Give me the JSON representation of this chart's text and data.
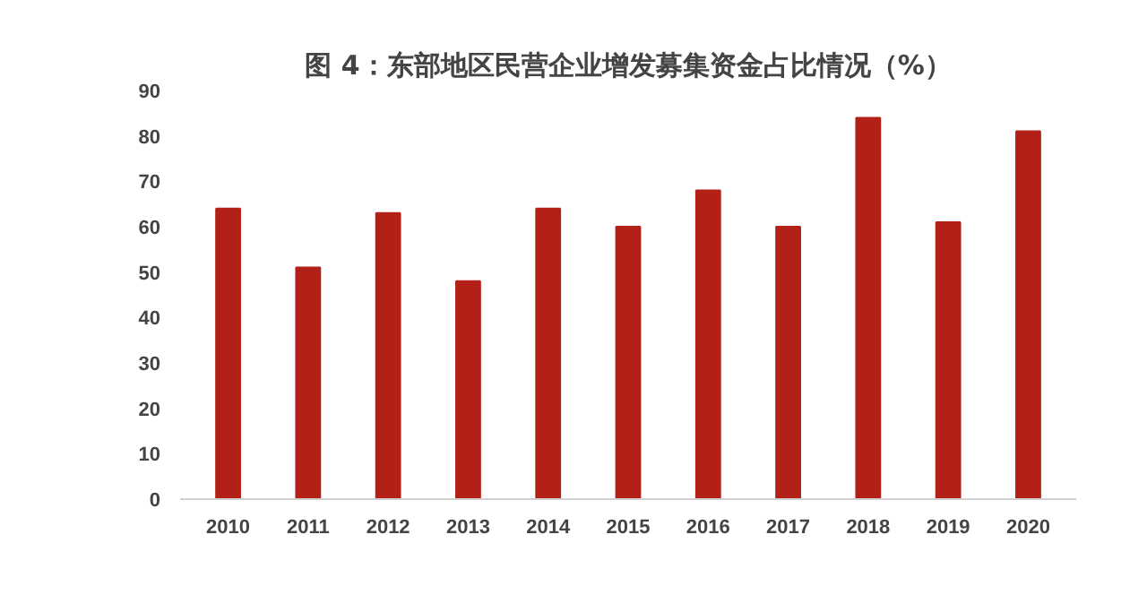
{
  "chart_data": {
    "type": "bar",
    "title": "图 4：东部地区民营企业增发募集资金占比情况（%）",
    "categories": [
      "2010",
      "2011",
      "2012",
      "2013",
      "2014",
      "2015",
      "2016",
      "2017",
      "2018",
      "2019",
      "2020"
    ],
    "values": [
      64,
      51,
      63,
      48,
      64,
      60,
      68,
      60,
      84,
      61,
      81
    ],
    "color": "#b22018",
    "ylim": [
      0,
      90
    ],
    "yticks": [
      0,
      10,
      20,
      30,
      40,
      50,
      60,
      70,
      80,
      90
    ],
    "grid": false
  }
}
